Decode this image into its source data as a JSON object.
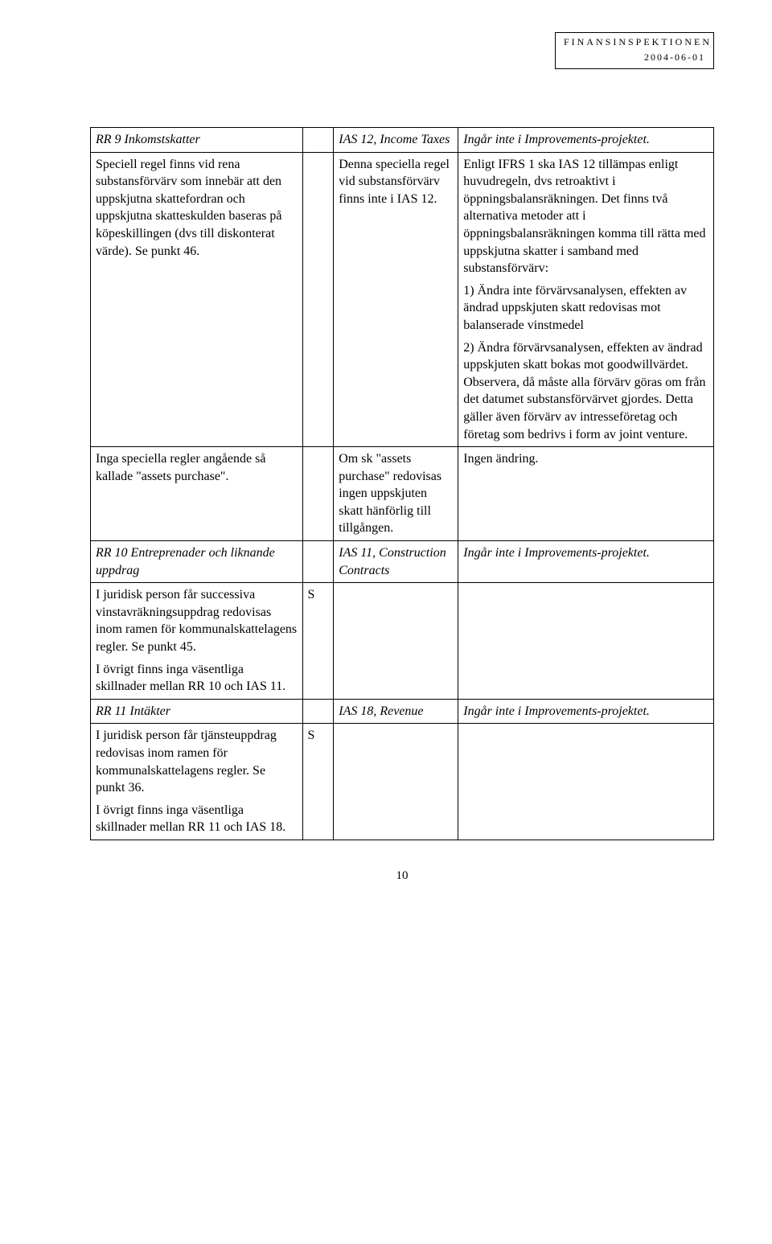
{
  "header": {
    "org": "FINANSINSPEKTIONEN",
    "date": "2004-06-01"
  },
  "rows": [
    {
      "c1": "RR 9 Inkomstskatter",
      "c1_italic": true,
      "c2": "",
      "c3": "IAS 12, Income Taxes",
      "c3_italic": true,
      "c4": "Ingår inte i Improvements-projektet.",
      "c4_italic": true
    },
    {
      "c1": "Speciell regel finns vid rena substansförvärv som innebär att den uppskjutna skattefordran och uppskjutna skatteskulden baseras på köpeskillingen (dvs till diskonterat värde). Se punkt 46.",
      "c2": "",
      "c3": "Denna speciella regel vid substansförvärv finns inte i IAS 12.",
      "c4": "Enligt IFRS 1 ska IAS 12 tillämpas enligt huvudregeln, dvs retroaktivt i öppningsbalansräkningen. Det finns två alternativa metoder att i öppningsbalansräkningen komma till rätta med uppskjutna skatter i samband med substansförvärv:\n1) Ändra inte förvärvsanalysen, effekten av ändrad uppskjuten skatt redovisas mot balanserade vinstmedel\n2) Ändra förvärvsanalysen, effekten av ändrad uppskjuten skatt bokas mot goodwillvärdet. Observera, då måste alla förvärv göras om från det datumet substansförvärvet gjordes. Detta gäller även förvärv av intresseföretag och företag som bedrivs i form av joint venture."
    },
    {
      "c1": "Inga speciella regler angående så kallade \"assets purchase\".",
      "c2": "",
      "c3": "Om sk \"assets purchase\" redovisas ingen uppskjuten skatt hänförlig till tillgången.",
      "c4": "Ingen ändring."
    },
    {
      "c1": "RR 10 Entreprenader och liknande uppdrag",
      "c1_italic": true,
      "c2": "",
      "c3": "IAS 11, Construction Contracts",
      "c3_italic": true,
      "c4": "Ingår inte i Improvements-projektet.",
      "c4_italic": true
    },
    {
      "c1": "I juridisk person får successiva vinstavräkningsuppdrag redovisas inom ramen för kommunalskattelagens regler. Se punkt 45.\nI övrigt finns inga väsentliga skillnader mellan RR 10 och IAS 11.",
      "c2": "S",
      "c3": "",
      "c4": ""
    },
    {
      "c1": "RR 11 Intäkter",
      "c1_italic": true,
      "c2": "",
      "c3": "IAS 18, Revenue",
      "c3_italic": true,
      "c4": "Ingår inte i Improvements-projektet.",
      "c4_italic": true
    },
    {
      "c1": "I juridisk person får tjänsteuppdrag redovisas inom ramen för kommunalskattelagens regler. Se punkt 36.\nI övrigt finns inga väsentliga skillnader mellan RR 11 och IAS 18.",
      "c2": "S",
      "c3": "",
      "c4": ""
    }
  ],
  "page_number": "10"
}
